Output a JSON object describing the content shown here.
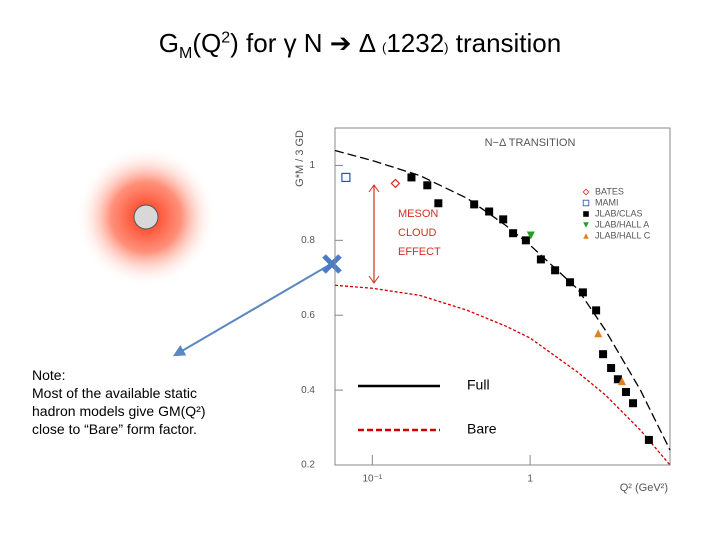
{
  "slide": {
    "title_parts": [
      "G",
      "M",
      "(Q",
      "2",
      ") for γ N ➔ Δ ",
      "(",
      "1232",
      ")",
      " transition"
    ],
    "note": [
      "Note:",
      "Most of the available static",
      "hadron models give GM(Q²)",
      "close to “Bare” form factor."
    ]
  },
  "chart_data": {
    "type": "scatter",
    "title": "N−Δ TRANSITION",
    "x_label": "Q² (GeV²)",
    "y_label": "G*M / 3 GD",
    "annotation": [
      "MESON",
      "CLOUD",
      "EFFECT"
    ],
    "xlog": true,
    "xlim": [
      0.058,
      7.7
    ],
    "ylim": [
      0.2,
      1.1
    ],
    "xticks": [
      {
        "value": 0.1,
        "label": "10⁻¹"
      },
      1
    ],
    "yticks": [
      0.2,
      0.4,
      0.6,
      0.8,
      1
    ],
    "series": [
      {
        "name": "BATES",
        "color": "#d03020",
        "marker": "diamond-open",
        "x": [
          0.14
        ],
        "values": [
          0.952
        ]
      },
      {
        "name": "MAMI",
        "color": "#3050b0",
        "marker": "square-open",
        "x": [
          0.068
        ],
        "values": [
          0.968
        ]
      },
      {
        "name": "JLAB/CLAS",
        "color": "#000000",
        "marker": "square",
        "x": [
          0.177,
          0.223,
          0.262,
          0.442,
          0.55,
          0.675,
          0.78,
          0.94,
          1.17,
          1.44,
          1.79,
          2.16,
          2.62,
          2.9,
          3.26,
          3.6,
          4.05,
          4.49,
          5.66
        ],
        "values": [
          0.968,
          0.947,
          0.899,
          0.896,
          0.877,
          0.856,
          0.819,
          0.8,
          0.749,
          0.72,
          0.688,
          0.661,
          0.613,
          0.496,
          0.459,
          0.429,
          0.395,
          0.365,
          0.267
        ]
      },
      {
        "name": "JLAB/HALL A",
        "color": "#20a020",
        "marker": "triangle-down",
        "x": [
          1.01
        ],
        "values": [
          0.813
        ]
      },
      {
        "name": "JLAB/HALL C",
        "color": "#e08020",
        "marker": "triangle-up",
        "x": [
          2.7,
          3.82
        ],
        "values": [
          0.552,
          0.424
        ]
      }
    ],
    "lines": [
      {
        "name": "Full",
        "color": "#000000",
        "x": [
          0.058,
          0.1,
          0.2,
          0.4,
          0.7,
          1,
          2,
          3,
          5,
          7.7
        ],
        "values": [
          1.04,
          1.013,
          0.973,
          0.912,
          0.84,
          0.787,
          0.67,
          0.56,
          0.4,
          0.24
        ]
      },
      {
        "name": "Bare",
        "color": "#cc0000",
        "x": [
          0.058,
          0.1,
          0.2,
          0.4,
          0.7,
          1,
          2,
          3,
          5,
          7.7
        ],
        "values": [
          0.68,
          0.672,
          0.653,
          0.613,
          0.571,
          0.539,
          0.448,
          0.387,
          0.293,
          0.2
        ]
      }
    ]
  }
}
